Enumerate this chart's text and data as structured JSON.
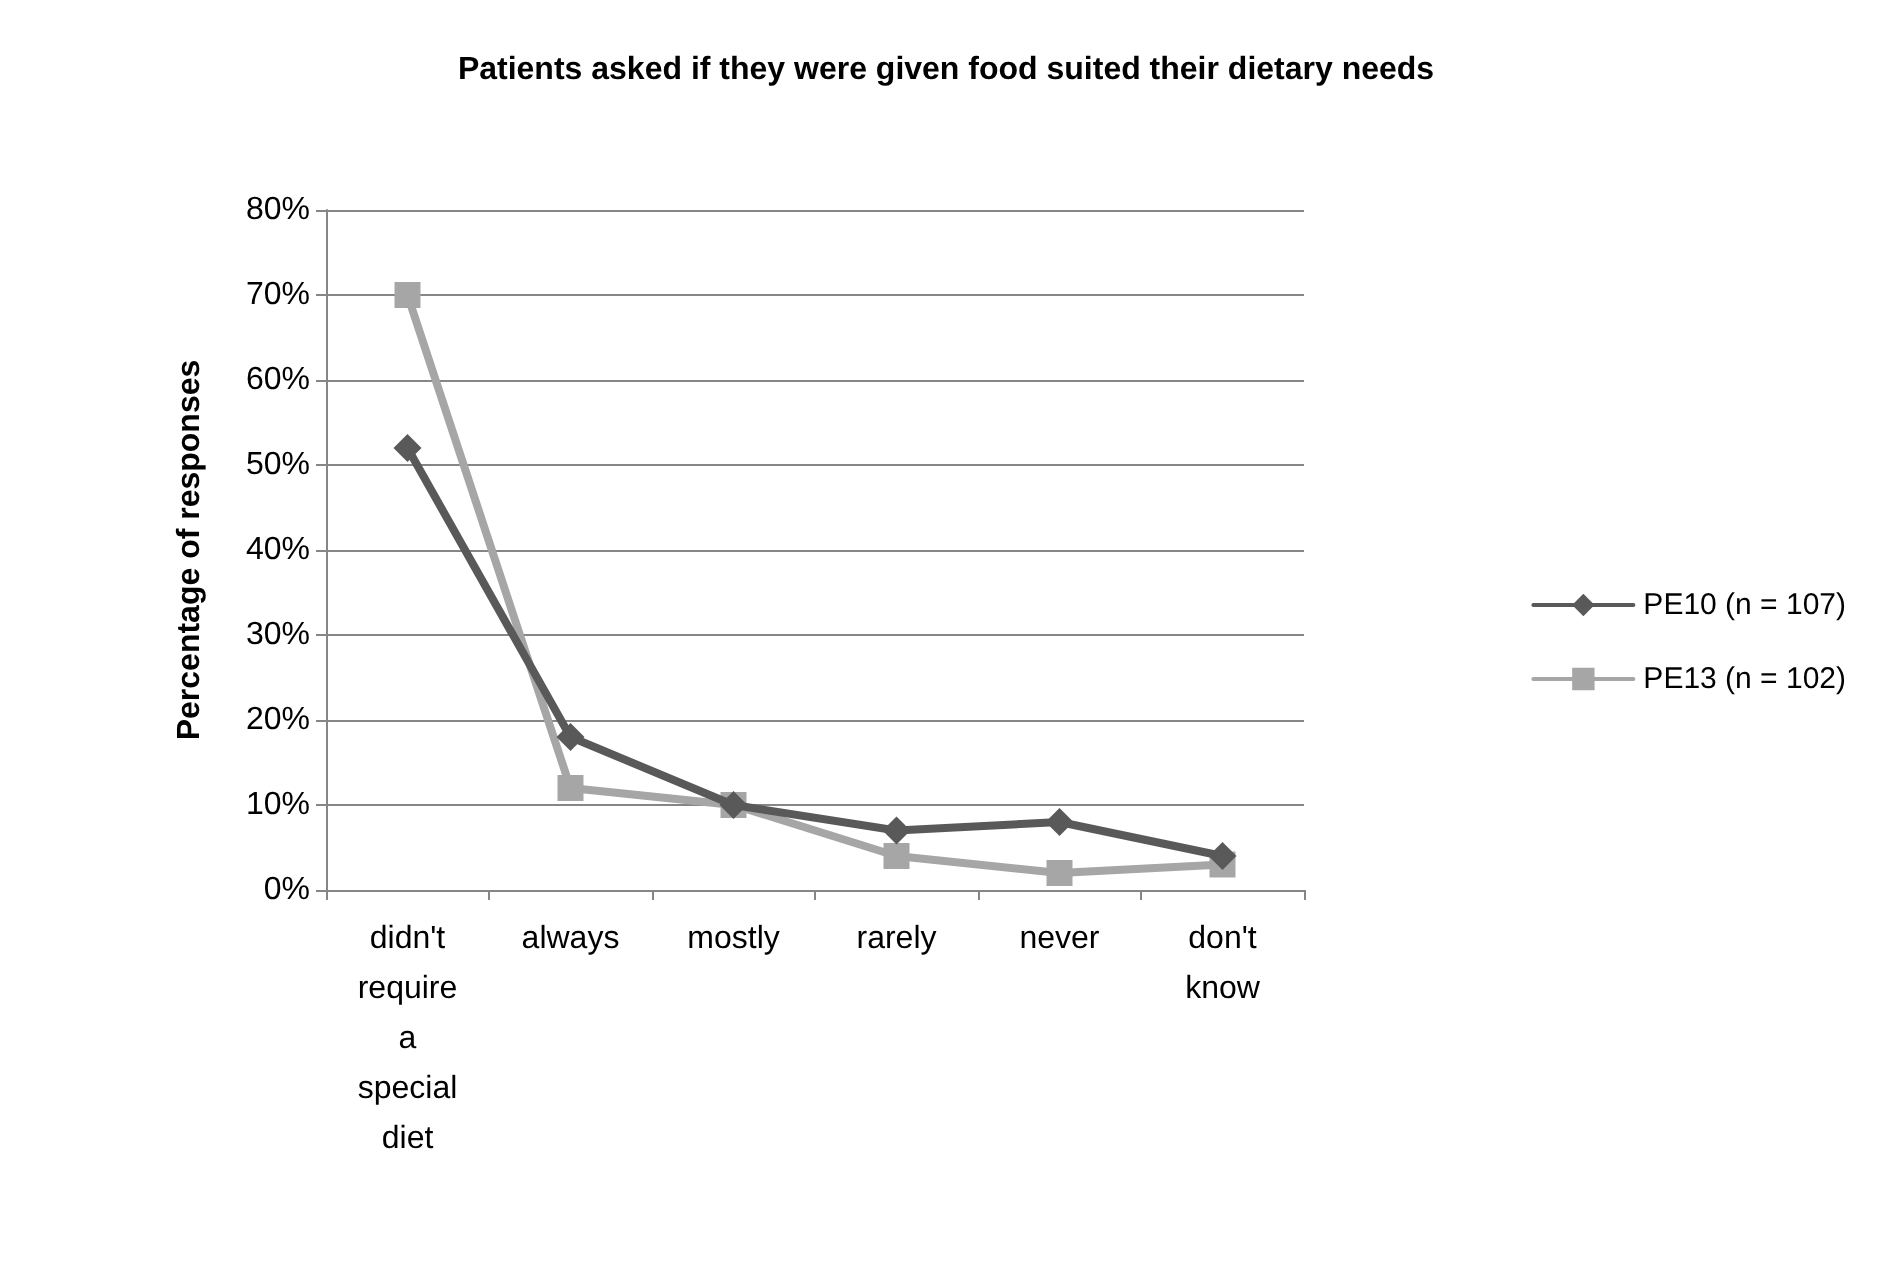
{
  "chart_data": {
    "type": "line",
    "title": "Patients asked if they were given food suited their dietary needs",
    "ylabel": "Percentage of responses",
    "categories": [
      "didn't require a special diet",
      "always",
      "mostly",
      "rarely",
      "never",
      "don't know"
    ],
    "series": [
      {
        "name": "PE10 (n = 107)",
        "color": "#595959",
        "marker": "diamond",
        "values": [
          52,
          18,
          10,
          7,
          8,
          4
        ]
      },
      {
        "name": "PE13 (n = 102)",
        "color": "#a6a6a6",
        "marker": "square",
        "values": [
          70,
          12,
          10,
          4,
          2,
          3
        ]
      }
    ],
    "ylim": [
      0,
      80
    ],
    "yticks": [
      {
        "value": 0,
        "label": "0%"
      },
      {
        "value": 10,
        "label": "10%"
      },
      {
        "value": 20,
        "label": "20%"
      },
      {
        "value": 30,
        "label": "30%"
      },
      {
        "value": 40,
        "label": "40%"
      },
      {
        "value": 50,
        "label": "50%"
      },
      {
        "value": 60,
        "label": "60%"
      },
      {
        "value": 70,
        "label": "70%"
      },
      {
        "value": 80,
        "label": "80%"
      }
    ],
    "grid": "y",
    "legend": "right"
  }
}
